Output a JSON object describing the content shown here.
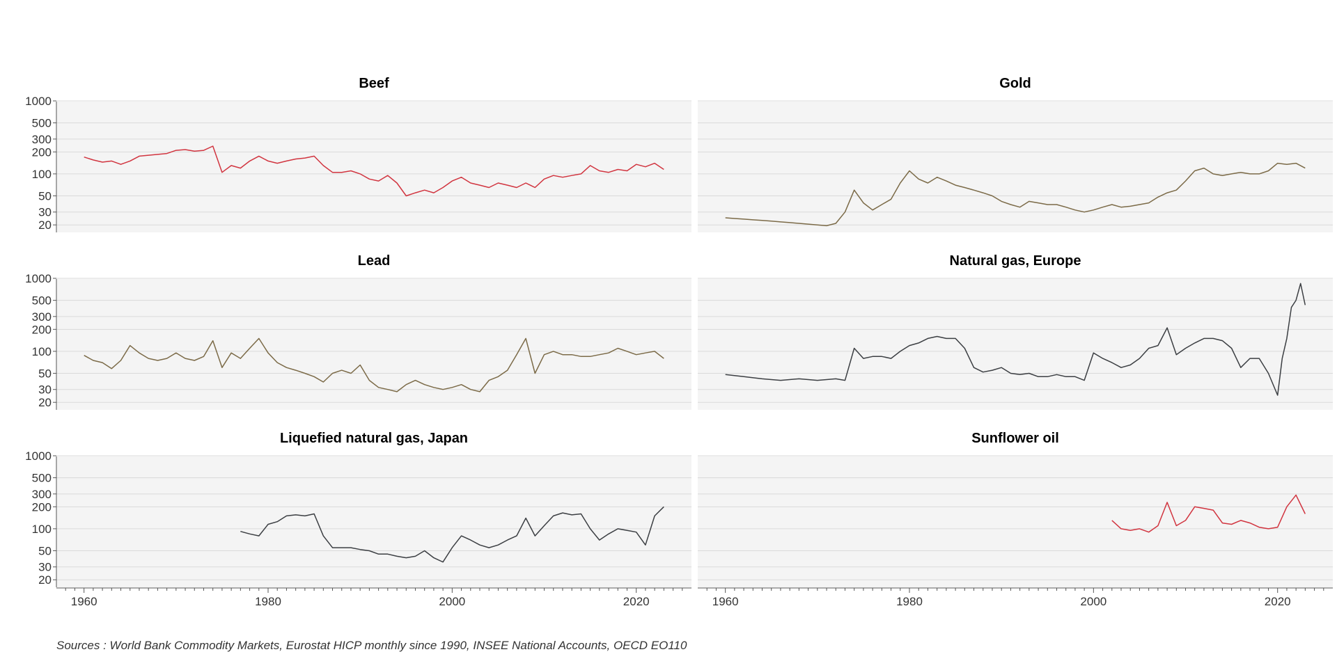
{
  "source_note": "Sources : World Bank Commodity Markets, Eurostat HICP monthly since 1990, INSEE National Accounts, OECD EO110",
  "chart_data": {
    "type": "line",
    "layout": "3x2 small multiples, shared x-axis per column",
    "y_scale": "log",
    "ylim": [
      18,
      1000
    ],
    "y_ticks": [
      20,
      30,
      50,
      100,
      200,
      300,
      500,
      1000
    ],
    "xlim": [
      1957,
      2026
    ],
    "x_ticks": [
      1960,
      1980,
      2000,
      2020
    ],
    "grid": true,
    "legend": "none",
    "panels": [
      {
        "title": "Beef",
        "color": "#d1343f",
        "x": [
          1960,
          1961,
          1962,
          1963,
          1964,
          1965,
          1966,
          1967,
          1968,
          1969,
          1970,
          1971,
          1972,
          1973,
          1974,
          1975,
          1976,
          1977,
          1978,
          1979,
          1980,
          1981,
          1982,
          1983,
          1984,
          1985,
          1986,
          1987,
          1988,
          1989,
          1990,
          1991,
          1992,
          1993,
          1994,
          1995,
          1996,
          1997,
          1998,
          1999,
          2000,
          2001,
          2002,
          2003,
          2004,
          2005,
          2006,
          2007,
          2008,
          2009,
          2010,
          2011,
          2012,
          2013,
          2014,
          2015,
          2016,
          2017,
          2018,
          2019,
          2020,
          2021,
          2022,
          2023
        ],
        "values": [
          170,
          155,
          145,
          150,
          135,
          150,
          175,
          180,
          185,
          190,
          210,
          215,
          205,
          210,
          240,
          105,
          130,
          120,
          150,
          175,
          150,
          140,
          150,
          160,
          165,
          175,
          130,
          105,
          105,
          110,
          100,
          85,
          80,
          95,
          75,
          50,
          55,
          60,
          55,
          65,
          80,
          90,
          75,
          70,
          65,
          75,
          70,
          65,
          75,
          65,
          85,
          95,
          90,
          95,
          100,
          130,
          110,
          105,
          115,
          110,
          135,
          125,
          140,
          115
        ]
      },
      {
        "title": "Gold",
        "color": "#7b6a47",
        "x": [
          1960,
          1961,
          1962,
          1963,
          1964,
          1965,
          1966,
          1967,
          1968,
          1969,
          1970,
          1971,
          1972,
          1973,
          1974,
          1975,
          1976,
          1977,
          1978,
          1979,
          1980,
          1981,
          1982,
          1983,
          1984,
          1985,
          1986,
          1987,
          1988,
          1989,
          1990,
          1991,
          1992,
          1993,
          1994,
          1995,
          1996,
          1997,
          1998,
          1999,
          2000,
          2001,
          2002,
          2003,
          2004,
          2005,
          2006,
          2007,
          2008,
          2009,
          2010,
          2011,
          2012,
          2013,
          2014,
          2015,
          2016,
          2017,
          2018,
          2019,
          2020,
          2021,
          2022,
          2023
        ],
        "values": [
          25,
          24.5,
          24,
          23.5,
          23,
          22.5,
          22,
          21.5,
          21,
          20.5,
          20,
          19.5,
          21,
          30,
          60,
          40,
          32,
          38,
          45,
          75,
          110,
          85,
          75,
          90,
          80,
          70,
          65,
          60,
          55,
          50,
          42,
          38,
          35,
          42,
          40,
          38,
          38,
          35,
          32,
          30,
          32,
          35,
          38,
          35,
          36,
          38,
          40,
          48,
          55,
          60,
          80,
          110,
          120,
          100,
          95,
          100,
          105,
          100,
          100,
          110,
          140,
          135,
          140,
          120
        ]
      },
      {
        "title": "Lead",
        "color": "#7b6a47",
        "x": [
          1960,
          1961,
          1962,
          1963,
          1964,
          1965,
          1966,
          1967,
          1968,
          1969,
          1970,
          1971,
          1972,
          1973,
          1974,
          1975,
          1976,
          1977,
          1978,
          1979,
          1980,
          1981,
          1982,
          1983,
          1984,
          1985,
          1986,
          1987,
          1988,
          1989,
          1990,
          1991,
          1992,
          1993,
          1994,
          1995,
          1996,
          1997,
          1998,
          1999,
          2000,
          2001,
          2002,
          2003,
          2004,
          2005,
          2006,
          2007,
          2008,
          2009,
          2010,
          2011,
          2012,
          2013,
          2014,
          2015,
          2016,
          2017,
          2018,
          2019,
          2020,
          2021,
          2022,
          2023
        ],
        "values": [
          88,
          75,
          70,
          58,
          75,
          120,
          95,
          80,
          75,
          80,
          95,
          80,
          75,
          85,
          140,
          60,
          95,
          80,
          110,
          150,
          95,
          70,
          60,
          55,
          50,
          45,
          38,
          50,
          55,
          50,
          65,
          40,
          32,
          30,
          28,
          35,
          40,
          35,
          32,
          30,
          32,
          35,
          30,
          28,
          40,
          45,
          55,
          90,
          150,
          50,
          90,
          100,
          90,
          90,
          85,
          85,
          90,
          95,
          110,
          100,
          90,
          95,
          100,
          80
        ]
      },
      {
        "title": "Natural gas, Europe",
        "color": "#3b3e42",
        "x": [
          1960,
          1962,
          1964,
          1966,
          1968,
          1970,
          1972,
          1973,
          1974,
          1975,
          1976,
          1977,
          1978,
          1979,
          1980,
          1981,
          1982,
          1983,
          1984,
          1985,
          1986,
          1987,
          1988,
          1989,
          1990,
          1991,
          1992,
          1993,
          1994,
          1995,
          1996,
          1997,
          1998,
          1999,
          2000,
          2001,
          2002,
          2003,
          2004,
          2005,
          2006,
          2007,
          2008,
          2009,
          2010,
          2011,
          2012,
          2013,
          2014,
          2015,
          2016,
          2017,
          2018,
          2019,
          2020,
          2020.5,
          2021,
          2021.5,
          2022,
          2022.5,
          2023
        ],
        "values": [
          48,
          45,
          42,
          40,
          42,
          40,
          42,
          40,
          110,
          80,
          85,
          85,
          80,
          100,
          120,
          130,
          150,
          160,
          150,
          150,
          110,
          60,
          52,
          55,
          60,
          50,
          48,
          50,
          45,
          45,
          48,
          45,
          45,
          40,
          95,
          80,
          70,
          60,
          65,
          80,
          110,
          120,
          210,
          90,
          110,
          130,
          150,
          150,
          140,
          110,
          60,
          80,
          80,
          50,
          25,
          80,
          150,
          400,
          500,
          850,
          430
        ]
      },
      {
        "title": "Liquefied natural gas, Japan",
        "color": "#3b3e42",
        "x": [
          1977,
          1978,
          1979,
          1980,
          1981,
          1982,
          1983,
          1984,
          1985,
          1986,
          1987,
          1988,
          1989,
          1990,
          1991,
          1992,
          1993,
          1994,
          1995,
          1996,
          1997,
          1998,
          1999,
          2000,
          2001,
          2002,
          2003,
          2004,
          2005,
          2006,
          2007,
          2008,
          2009,
          2010,
          2011,
          2012,
          2013,
          2014,
          2015,
          2016,
          2017,
          2018,
          2019,
          2020,
          2021,
          2022,
          2023
        ],
        "values": [
          92,
          85,
          80,
          115,
          125,
          150,
          155,
          150,
          160,
          80,
          55,
          55,
          55,
          52,
          50,
          45,
          45,
          42,
          40,
          42,
          50,
          40,
          35,
          55,
          80,
          70,
          60,
          55,
          60,
          70,
          80,
          140,
          80,
          110,
          150,
          165,
          155,
          160,
          100,
          70,
          85,
          100,
          95,
          90,
          60,
          150,
          200
        ]
      },
      {
        "title": "Sunflower oil",
        "color": "#d1343f",
        "x": [
          2002,
          2003,
          2004,
          2005,
          2006,
          2007,
          2008,
          2009,
          2010,
          2011,
          2012,
          2013,
          2014,
          2015,
          2016,
          2017,
          2018,
          2019,
          2020,
          2021,
          2022,
          2023
        ],
        "values": [
          130,
          100,
          95,
          100,
          90,
          110,
          230,
          110,
          130,
          200,
          190,
          180,
          120,
          115,
          130,
          120,
          105,
          100,
          105,
          200,
          290,
          160
        ]
      }
    ]
  }
}
